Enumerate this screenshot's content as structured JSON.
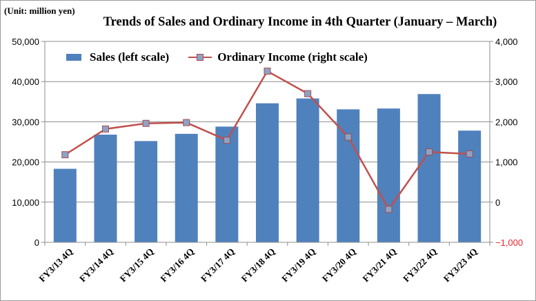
{
  "chart_data": {
    "type": "bar+line",
    "title": "Trends of Sales and Ordinary Income in 4th Quarter (January – March)",
    "unit_label": "(Unit: million yen)",
    "categories": [
      "FY3/13 4Q",
      "FY3/14 4Q",
      "FY3/15 4Q",
      "FY3/16 4Q",
      "FY3/17 4Q",
      "FY3/18 4Q",
      "FY3/19 4Q",
      "FY3/20 4Q",
      "FY3/21 4Q",
      "FY3/22 4Q",
      "FY3/23 4Q"
    ],
    "series": [
      {
        "name": "Sales (left scale)",
        "type": "bar",
        "axis": "left",
        "color": "#4f81bd",
        "values": [
          18300,
          26800,
          25200,
          27000,
          28800,
          34600,
          35800,
          33100,
          33300,
          36900,
          27800
        ]
      },
      {
        "name": "Ordinary Income (right scale)",
        "type": "line",
        "axis": "right",
        "color": "#c0504d",
        "marker_color": "#8ca3c8",
        "values": [
          1180,
          1820,
          1960,
          1980,
          1540,
          3260,
          2700,
          1620,
          -180,
          1250,
          1200
        ]
      }
    ],
    "left_axis": {
      "ylim": [
        0,
        50000
      ],
      "tick_labels": [
        "0",
        "10,000",
        "20,000",
        "30,000",
        "40,000",
        "50,000"
      ],
      "tick_values": [
        0,
        10000,
        20000,
        30000,
        40000,
        50000
      ]
    },
    "right_axis": {
      "ylim": [
        -1000,
        4000
      ],
      "tick_labels": [
        "−1,000",
        "0",
        "1,000",
        "2,000",
        "3,000",
        "4,000"
      ],
      "tick_values": [
        -1000,
        0,
        1000,
        2000,
        3000,
        4000
      ],
      "negative_label_color": "#e8252b"
    },
    "grid": true,
    "legend_position": "top-left"
  }
}
